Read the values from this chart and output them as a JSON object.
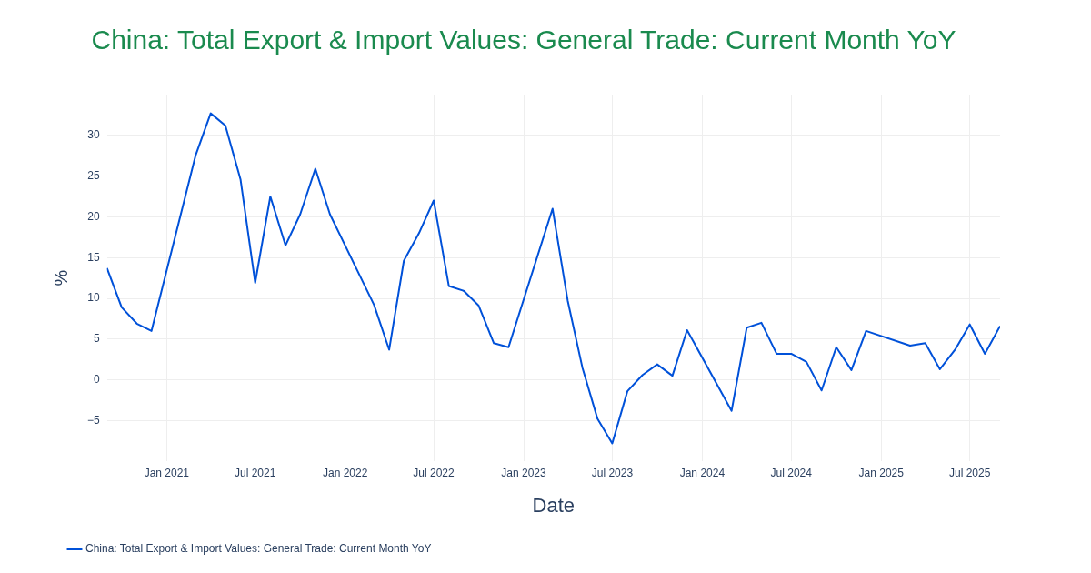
{
  "chart_data": {
    "type": "line",
    "title": "China: Total Export & Import Values: General Trade: Current Month YoY",
    "xlabel": "Date",
    "ylabel": "%",
    "x": [
      "2020-09",
      "2020-10",
      "2020-11",
      "2020-12",
      "2021-03",
      "2021-04",
      "2021-05",
      "2021-06",
      "2021-07",
      "2021-08",
      "2021-09",
      "2021-10",
      "2021-11",
      "2021-12",
      "2022-03",
      "2022-04",
      "2022-05",
      "2022-06",
      "2022-07",
      "2022-08",
      "2022-09",
      "2022-10",
      "2022-11",
      "2022-12",
      "2023-03",
      "2023-04",
      "2023-05",
      "2023-06",
      "2023-07",
      "2023-08",
      "2023-09",
      "2023-10",
      "2023-11",
      "2023-12",
      "2024-03",
      "2024-04",
      "2024-05",
      "2024-06",
      "2024-07",
      "2024-08",
      "2024-09",
      "2024-10",
      "2024-11",
      "2024-12",
      "2025-03",
      "2025-04",
      "2025-05",
      "2025-06",
      "2025-07",
      "2025-08",
      "2025-09"
    ],
    "series": [
      {
        "name": "China: Total Export & Import Values: General Trade: Current Month YoY",
        "color": "#0051d9",
        "values": [
          13.7,
          8.9,
          6.9,
          6.0,
          27.5,
          32.7,
          31.2,
          24.6,
          11.9,
          22.5,
          16.5,
          20.3,
          25.9,
          20.3,
          9.2,
          3.7,
          14.6,
          18.0,
          22.0,
          11.5,
          10.9,
          9.1,
          4.5,
          4.0,
          21.0,
          9.7,
          1.5,
          -4.8,
          -7.8,
          -1.4,
          0.6,
          1.9,
          0.5,
          6.1,
          -3.8,
          6.4,
          7.0,
          3.2,
          3.2,
          2.2,
          -1.3,
          4.0,
          1.2,
          6.0,
          4.2,
          4.5,
          1.3,
          3.7,
          6.8,
          3.2,
          6.6
        ]
      }
    ],
    "xlim": [
      "2020-09",
      "2025-09"
    ],
    "xticks": [
      {
        "value": "2021-01",
        "label": "Jan 2021"
      },
      {
        "value": "2021-07",
        "label": "Jul 2021"
      },
      {
        "value": "2022-01",
        "label": "Jan 2022"
      },
      {
        "value": "2022-07",
        "label": "Jul 2022"
      },
      {
        "value": "2023-01",
        "label": "Jan 2023"
      },
      {
        "value": "2023-07",
        "label": "Jul 2023"
      },
      {
        "value": "2024-01",
        "label": "Jan 2024"
      },
      {
        "value": "2024-07",
        "label": "Jul 2024"
      },
      {
        "value": "2025-01",
        "label": "Jan 2025"
      },
      {
        "value": "2025-07",
        "label": "Jul 2025"
      }
    ],
    "ylim": [
      -10,
      35
    ],
    "yticks": [
      {
        "value": -5,
        "label": "−5"
      },
      0,
      5,
      10,
      15,
      20,
      25,
      30
    ],
    "grid": true,
    "legend": "bottom left",
    "marker": "none",
    "line_style": "solid"
  }
}
